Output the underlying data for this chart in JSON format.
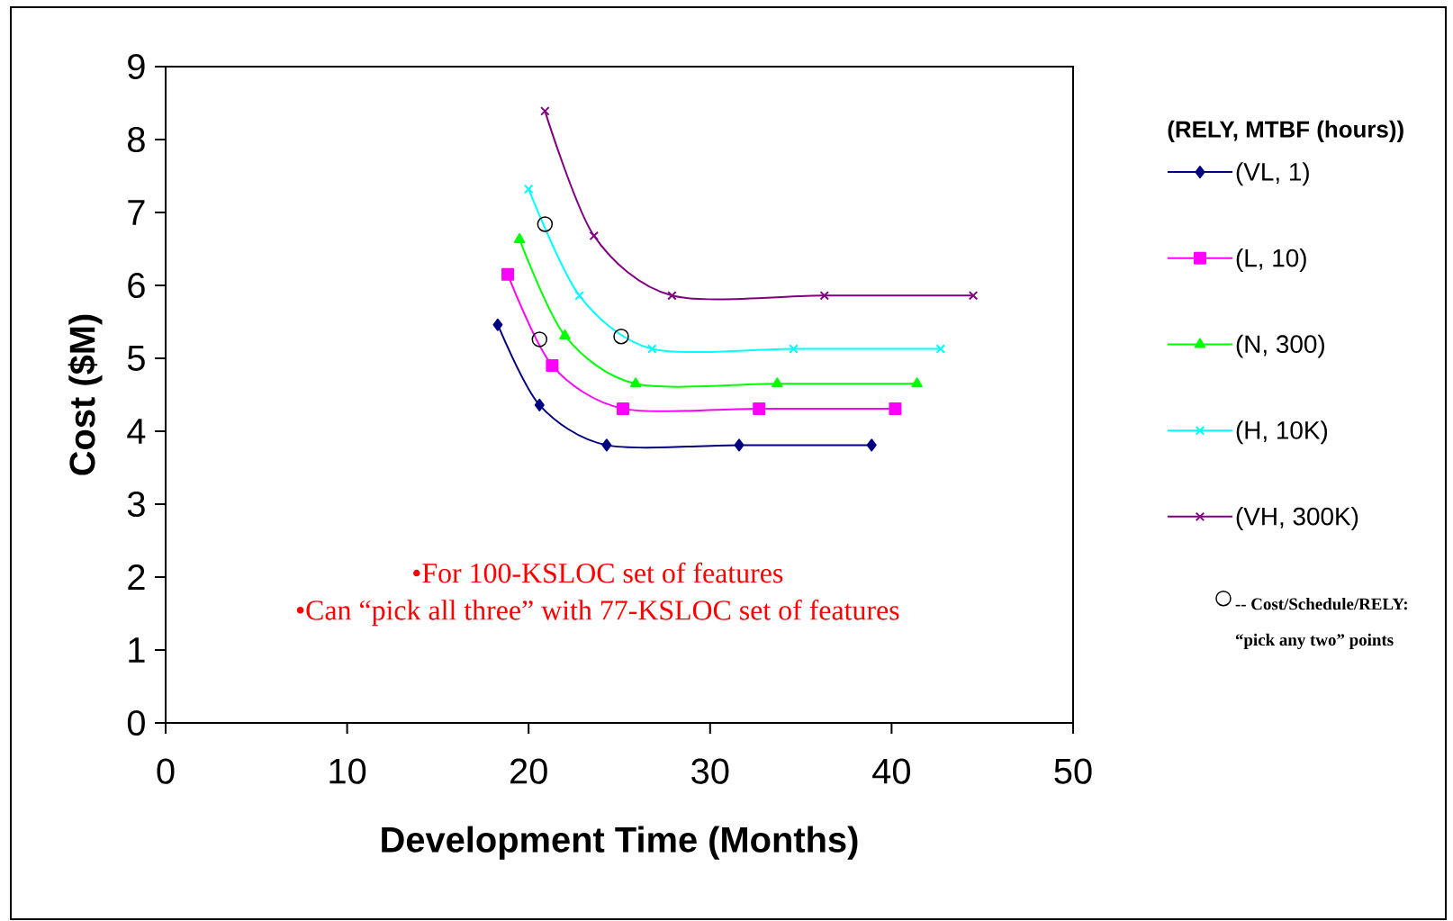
{
  "chart_data": {
    "type": "line",
    "xlabel": "Development Time (Months)",
    "ylabel": "Cost ($M)",
    "legend_title": "(RELY, MTBF (hours))",
    "xlim": [
      0,
      50
    ],
    "ylim": [
      0,
      9
    ],
    "xticks": [
      0,
      10,
      20,
      30,
      40,
      50
    ],
    "yticks": [
      0,
      1,
      2,
      3,
      4,
      5,
      6,
      7,
      8,
      9
    ],
    "legend": "right",
    "line_style": "solid",
    "annotations": [
      "•For 100-KSLOC set of features",
      "•Can “pick all three” with 77-KSLOC set of features"
    ],
    "series": [
      {
        "name": "(VL, 1)",
        "color": "#000080",
        "marker": "diamond",
        "x": [
          18.3,
          20.6,
          24.3,
          31.6,
          38.9
        ],
        "values": [
          5.46,
          4.36,
          3.81,
          3.81,
          3.81
        ]
      },
      {
        "name": "(L, 10)",
        "color": "#ff00ff",
        "marker": "square",
        "x": [
          18.85,
          21.3,
          25.2,
          32.7,
          40.2
        ],
        "values": [
          6.15,
          4.9,
          4.31,
          4.31,
          4.31
        ]
      },
      {
        "name": "(N, 300)",
        "color": "#00ff00",
        "marker": "triangle",
        "x": [
          19.5,
          22.0,
          25.9,
          33.7,
          41.4
        ],
        "values": [
          6.63,
          5.31,
          4.65,
          4.65,
          4.65
        ]
      },
      {
        "name": "(H, 10K)",
        "color": "#00ffff",
        "marker": "cross",
        "x": [
          20.0,
          22.8,
          26.8,
          34.6,
          42.7
        ],
        "values": [
          7.32,
          5.86,
          5.13,
          5.13,
          5.13
        ]
      },
      {
        "name": "(VH, 300K)",
        "color": "#800080",
        "marker": "cross",
        "x": [
          20.9,
          23.6,
          27.9,
          36.3,
          44.5
        ],
        "values": [
          8.39,
          6.68,
          5.86,
          5.86,
          5.86
        ]
      },
      {
        "name": "-- Cost/Schedule/RELY: “pick any two” points",
        "type": "scatter",
        "color": "#000000",
        "marker": "circle",
        "x": [
          20.9,
          20.6,
          25.1
        ],
        "values": [
          6.84,
          5.26,
          5.3
        ]
      }
    ]
  }
}
